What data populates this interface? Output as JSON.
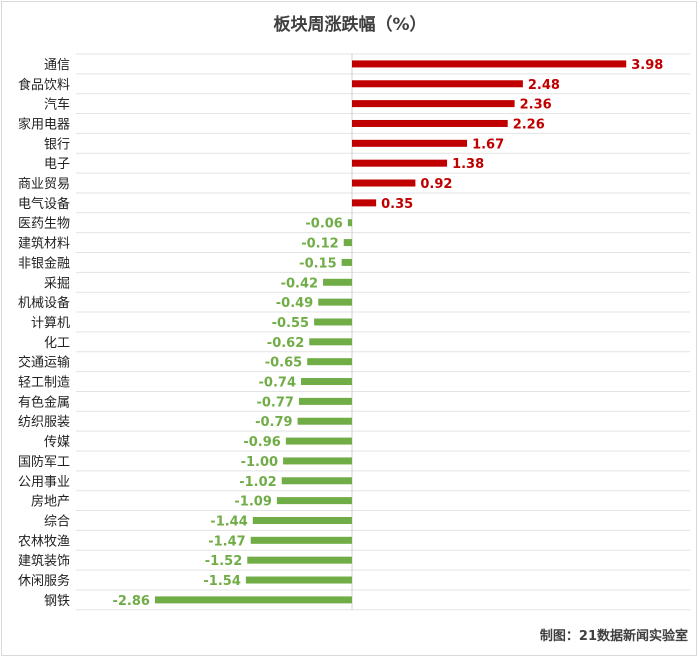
{
  "chart_data": {
    "type": "bar",
    "orientation": "horizontal",
    "title": "板块周涨跌幅（%）",
    "categories": [
      "通信",
      "食品饮料",
      "汽车",
      "家用电器",
      "银行",
      "电子",
      "商业贸易",
      "电气设备",
      "医药生物",
      "建筑材料",
      "非银金融",
      "采掘",
      "机械设备",
      "计算机",
      "化工",
      "交通运输",
      "轻工制造",
      "有色金属",
      "纺织服装",
      "传媒",
      "国防军工",
      "公用事业",
      "房地产",
      "综合",
      "农林牧渔",
      "建筑装饰",
      "休闲服务",
      "钢铁"
    ],
    "values": [
      3.98,
      2.48,
      2.36,
      2.26,
      1.67,
      1.38,
      0.92,
      0.35,
      -0.06,
      -0.12,
      -0.15,
      -0.42,
      -0.49,
      -0.55,
      -0.62,
      -0.65,
      -0.74,
      -0.77,
      -0.79,
      -0.96,
      -1.0,
      -1.02,
      -1.09,
      -1.44,
      -1.47,
      -1.52,
      -1.54,
      -2.86
    ],
    "value_labels": [
      "3.98",
      "2.48",
      "2.36",
      "2.26",
      "1.67",
      "1.38",
      "0.92",
      "0.35",
      "-0.06",
      "-0.12",
      "-0.15",
      "-0.42",
      "-0.49",
      "-0.55",
      "-0.62",
      "-0.65",
      "-0.74",
      "-0.77",
      "-0.79",
      "-0.96",
      "-1.00",
      "-1.02",
      "-1.09",
      "-1.44",
      "-1.47",
      "-1.52",
      "-1.54",
      "-2.86"
    ],
    "positive_color": "#c00000",
    "negative_color": "#70ad47",
    "grid": "horizontal",
    "xlim": [
      -3.0,
      4.5
    ]
  },
  "credit": "制图：21数据新闻实验室"
}
